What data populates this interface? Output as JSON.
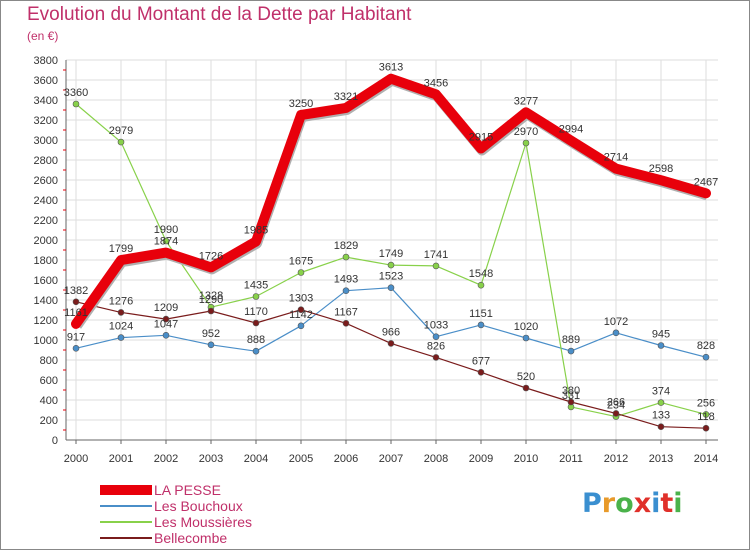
{
  "header": {
    "title": "Evolution du Montant de la Dette par Habitant",
    "subtitle": "(en €)"
  },
  "logo": {
    "text": "Proxiti",
    "letter_colors": [
      "#3a8fd0",
      "#e89a2a",
      "#4ab24a",
      "#e0302a",
      "#3a8fd0",
      "#e0302a",
      "#4ab24a"
    ]
  },
  "chart_data": {
    "type": "line",
    "title": "Evolution du Montant de la Dette par Habitant",
    "subtitle": "(en €)",
    "x": [
      "2000",
      "2001",
      "2002",
      "2003",
      "2004",
      "2005",
      "2006",
      "2007",
      "2008",
      "2009",
      "2010",
      "2011",
      "2012",
      "2013",
      "2014"
    ],
    "ylim": [
      0,
      3800
    ],
    "yticks": [
      0,
      200,
      400,
      600,
      800,
      1000,
      1200,
      1400,
      1600,
      1800,
      2000,
      2200,
      2400,
      2600,
      2800,
      3000,
      3200,
      3400,
      3600,
      3800
    ],
    "grid": true,
    "legend_position": "bottom-left",
    "series": [
      {
        "name": "LA PESSE",
        "color": "#e8000b",
        "thick": true,
        "values": [
          1161,
          1799,
          1874,
          1726,
          1985,
          3250,
          3321,
          3613,
          3456,
          2915,
          3277,
          2994,
          2714,
          2598,
          2467
        ]
      },
      {
        "name": "Les Bouchoux",
        "color": "#4a8ec8",
        "thick": false,
        "values": [
          917,
          1024,
          1047,
          952,
          888,
          1142,
          1493,
          1523,
          1033,
          1151,
          1020,
          889,
          1072,
          945,
          828
        ]
      },
      {
        "name": "Les Moussières",
        "color": "#88d14a",
        "thick": false,
        "values": [
          3360,
          2979,
          1990,
          1328,
          1435,
          1675,
          1829,
          1749,
          1741,
          1548,
          2970,
          331,
          234,
          374,
          256
        ]
      },
      {
        "name": "Bellecombe",
        "color": "#7a1c1c",
        "thick": false,
        "values": [
          1382,
          1276,
          1209,
          1290,
          1170,
          1303,
          1167,
          966,
          826,
          677,
          520,
          380,
          266,
          133,
          118
        ]
      }
    ]
  }
}
